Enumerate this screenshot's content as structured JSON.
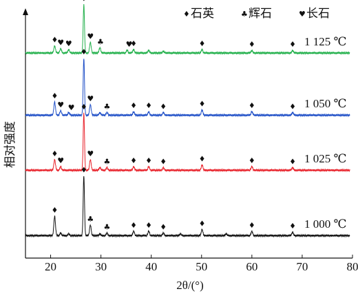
{
  "chart_data": {
    "type": "line",
    "xlabel": "2θ/(°)",
    "ylabel": "相对强度",
    "xlim": [
      15,
      80
    ],
    "xticks": [
      20,
      30,
      40,
      50,
      60,
      70,
      80
    ],
    "grid": false,
    "legend": {
      "placement": "top-right",
      "entries": [
        {
          "symbol": "♦",
          "label": "石英",
          "symbol_name": "diamond-icon"
        },
        {
          "symbol": "♣",
          "label": "辉石",
          "symbol_name": "club-icon"
        },
        {
          "symbol": "♥",
          "label": "长石",
          "symbol_name": "heart-icon"
        }
      ]
    },
    "series": [
      {
        "label": "1 125 ℃",
        "color": "#22b04b",
        "baseline": 0.8,
        "peaks": [
          [
            20.8,
            8
          ],
          [
            22.0,
            5
          ],
          [
            23.6,
            4
          ],
          [
            26.6,
            55
          ],
          [
            27.9,
            12
          ],
          [
            29.8,
            6
          ],
          [
            35.2,
            3
          ],
          [
            36.5,
            4
          ],
          [
            39.5,
            3
          ],
          [
            42.4,
            2
          ],
          [
            50.1,
            4
          ],
          [
            60.0,
            3
          ],
          [
            68.1,
            3
          ]
        ],
        "markers": [
          {
            "x": 20.8,
            "sym": "♦"
          },
          {
            "x": 22.0,
            "sym": "♥"
          },
          {
            "x": 23.6,
            "sym": "♥"
          },
          {
            "x": 26.6,
            "sym": "♦"
          },
          {
            "x": 27.9,
            "sym": "♥"
          },
          {
            "x": 29.9,
            "sym": "♣"
          },
          {
            "x": 35.6,
            "sym": "♥"
          },
          {
            "x": 36.5,
            "sym": "♦"
          },
          {
            "x": 50.1,
            "sym": "♦"
          },
          {
            "x": 60.0,
            "sym": "♦"
          },
          {
            "x": 68.1,
            "sym": "♦"
          }
        ]
      },
      {
        "label": "1 050 ℃",
        "color": "#1f4fc7",
        "baseline": 0.5,
        "peaks": [
          [
            20.8,
            15
          ],
          [
            22.0,
            5
          ],
          [
            23.6,
            3
          ],
          [
            26.6,
            65
          ],
          [
            27.9,
            12
          ],
          [
            29.8,
            3
          ],
          [
            31.2,
            3
          ],
          [
            36.5,
            4
          ],
          [
            39.5,
            4
          ],
          [
            42.4,
            3
          ],
          [
            50.1,
            6
          ],
          [
            60.0,
            4
          ],
          [
            68.1,
            3
          ]
        ],
        "markers": [
          {
            "x": 20.8,
            "sym": "♦"
          },
          {
            "x": 22.0,
            "sym": "♥"
          },
          {
            "x": 24.1,
            "sym": "♥"
          },
          {
            "x": 26.6,
            "sym": "♦"
          },
          {
            "x": 27.9,
            "sym": "♥"
          },
          {
            "x": 31.2,
            "sym": "♣"
          },
          {
            "x": 36.5,
            "sym": "♦"
          },
          {
            "x": 39.5,
            "sym": "♦"
          },
          {
            "x": 42.4,
            "sym": "♦"
          },
          {
            "x": 50.1,
            "sym": "♦"
          },
          {
            "x": 60.0,
            "sym": "♦"
          },
          {
            "x": 68.1,
            "sym": "♦"
          }
        ]
      },
      {
        "label": "1 025 ℃",
        "color": "#e8212a",
        "baseline": 0.5,
        "peaks": [
          [
            20.8,
            12
          ],
          [
            22.0,
            4
          ],
          [
            26.6,
            65
          ],
          [
            27.9,
            12
          ],
          [
            29.8,
            3
          ],
          [
            31.2,
            3
          ],
          [
            36.5,
            4
          ],
          [
            39.5,
            4
          ],
          [
            42.4,
            3
          ],
          [
            50.1,
            6
          ],
          [
            60.0,
            4
          ],
          [
            68.1,
            3
          ]
        ],
        "markers": [
          {
            "x": 20.8,
            "sym": "♦"
          },
          {
            "x": 22.0,
            "sym": "♥"
          },
          {
            "x": 26.6,
            "sym": "♦"
          },
          {
            "x": 27.9,
            "sym": "♥"
          },
          {
            "x": 31.2,
            "sym": "♣"
          },
          {
            "x": 36.5,
            "sym": "♦"
          },
          {
            "x": 39.5,
            "sym": "♦"
          },
          {
            "x": 42.4,
            "sym": "♦"
          },
          {
            "x": 50.1,
            "sym": "♦"
          },
          {
            "x": 60.0,
            "sym": "♦"
          },
          {
            "x": 68.1,
            "sym": "♦"
          }
        ]
      },
      {
        "label": "1 000 ℃",
        "color": "#111111",
        "baseline": 0.5,
        "peaks": [
          [
            20.8,
            22
          ],
          [
            22.0,
            3
          ],
          [
            23.6,
            2
          ],
          [
            26.6,
            68
          ],
          [
            27.9,
            12
          ],
          [
            29.8,
            2
          ],
          [
            31.2,
            3
          ],
          [
            36.5,
            5
          ],
          [
            39.5,
            5
          ],
          [
            42.4,
            3
          ],
          [
            45.8,
            2
          ],
          [
            50.1,
            7
          ],
          [
            54.9,
            2
          ],
          [
            60.0,
            5
          ],
          [
            68.1,
            4
          ]
        ],
        "markers": [
          {
            "x": 20.8,
            "sym": "♦"
          },
          {
            "x": 26.6,
            "sym": "♦"
          },
          {
            "x": 27.9,
            "sym": "♣"
          },
          {
            "x": 31.2,
            "sym": "♣"
          },
          {
            "x": 36.5,
            "sym": "♦"
          },
          {
            "x": 39.5,
            "sym": "♦"
          },
          {
            "x": 42.4,
            "sym": "♦"
          },
          {
            "x": 50.1,
            "sym": "♦"
          },
          {
            "x": 60.0,
            "sym": "♦"
          },
          {
            "x": 68.1,
            "sym": "♦"
          }
        ]
      }
    ]
  }
}
